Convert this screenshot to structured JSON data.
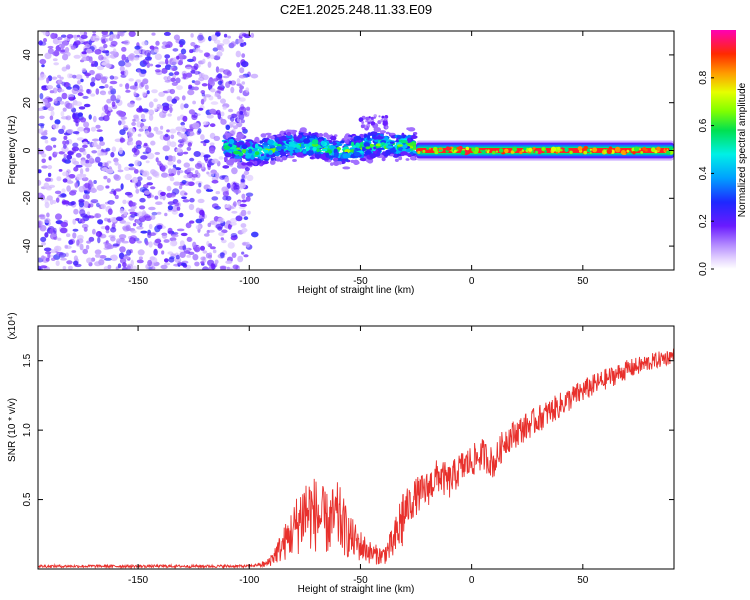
{
  "title": "C2E1.2025.248.11.33.E09",
  "chart_data": [
    {
      "type": "heatmap",
      "xlabel": "Height of straight line (km)",
      "ylabel": "Frequency (Hz)",
      "xlim": [
        -195,
        91
      ],
      "ylim": [
        -50,
        50
      ],
      "xticks": [
        -150,
        -100,
        -50,
        0,
        50
      ],
      "xtick_labels": [
        "-150",
        "-100",
        "-50",
        "0",
        "50"
      ],
      "yticks": [
        -40,
        -20,
        0,
        20,
        40
      ],
      "ytick_labels": [
        "-40",
        "-20",
        "0",
        "20",
        "40"
      ],
      "colorbar": {
        "label": "Normalized spectral amplitude",
        "range": [
          0,
          1
        ],
        "ticks": [
          0.0,
          0.2,
          0.4,
          0.6,
          0.8
        ],
        "tick_labels": [
          "0.0",
          "0.2",
          "0.4",
          "0.6",
          "0.8"
        ]
      },
      "regions": [
        {
          "name": "noise",
          "x_range": [
            -195,
            -100
          ],
          "freq_range": [
            -50,
            50
          ],
          "amplitude": 0.2
        },
        {
          "name": "scatter-band",
          "x_range": [
            -111,
            -25
          ],
          "freq_center": 1,
          "freq_halfwidth": 7,
          "amplitude": 0.45
        },
        {
          "name": "clean-signal",
          "x_range": [
            -25,
            91
          ],
          "freq_center": 0,
          "freq_halfwidth": 3,
          "amplitude": 0.95
        }
      ]
    },
    {
      "type": "line",
      "xlabel": "Height of straight line (km)",
      "ylabel": "SNR (10 * v/v)",
      "y_multiplier": "(x10⁴)",
      "xlim": [
        -195,
        91
      ],
      "ylim": [
        0,
        1.75
      ],
      "xticks": [
        -150,
        -100,
        -50,
        0,
        50
      ],
      "xtick_labels": [
        "-150",
        "-100",
        "-50",
        "0",
        "50"
      ],
      "yticks": [
        0.5,
        1.0,
        1.5
      ],
      "ytick_labels": [
        "0.5",
        "1.0",
        "1.5"
      ],
      "color": "#e8302c",
      "series": [
        {
          "name": "SNR",
          "x": [
            -195,
            -150,
            -100,
            -92,
            -85,
            -80,
            -75,
            -70,
            -65,
            -60,
            -55,
            -50,
            -45,
            -40,
            -35,
            -30,
            -25,
            -20,
            -15,
            -10,
            -5,
            0,
            5,
            10,
            15,
            20,
            30,
            40,
            50,
            60,
            70,
            80,
            91
          ],
          "y": [
            0.02,
            0.02,
            0.02,
            0.04,
            0.18,
            0.3,
            0.45,
            0.42,
            0.35,
            0.4,
            0.25,
            0.18,
            0.12,
            0.1,
            0.2,
            0.45,
            0.55,
            0.6,
            0.7,
            0.65,
            0.75,
            0.8,
            0.85,
            0.78,
            0.95,
            1.0,
            1.1,
            1.2,
            1.3,
            1.38,
            1.45,
            1.5,
            1.55
          ]
        }
      ]
    }
  ]
}
